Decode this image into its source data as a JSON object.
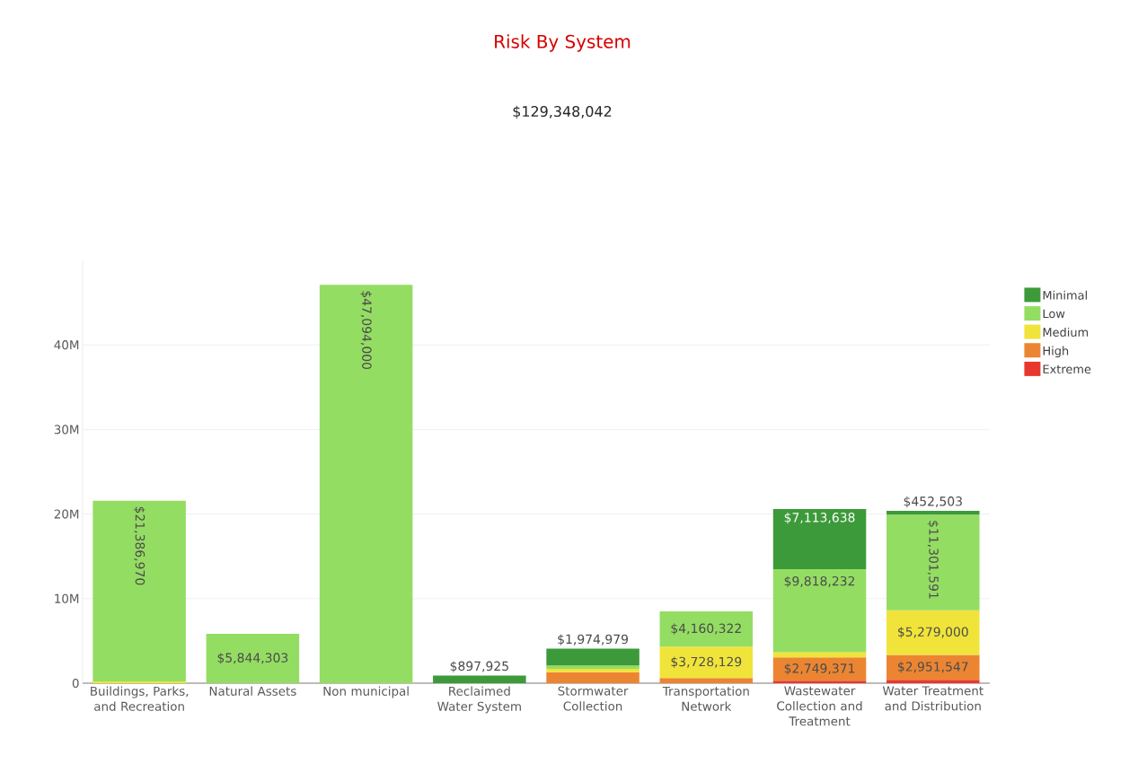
{
  "chart_data": {
    "type": "bar",
    "stacked": true,
    "title": "Risk By System",
    "subtitle": "$129,348,042",
    "categories": [
      "Buildings, Parks, and Recreation",
      "Natural Assets",
      "Non municipal",
      "Reclaimed Water System",
      "Stormwater Collection",
      "Transportation Network",
      "Wastewater Collection and Treatment",
      "Water Treatment and Distribution"
    ],
    "series": [
      {
        "name": "Extreme",
        "color": "#e8372c",
        "values": [
          null,
          null,
          null,
          null,
          null,
          null,
          300000,
          400000
        ],
        "value_labels": [
          null,
          null,
          null,
          null,
          null,
          null,
          null,
          null
        ]
      },
      {
        "name": "High",
        "color": "#ec8532",
        "values": [
          null,
          null,
          null,
          null,
          1300000,
          600000,
          2749371,
          2951547
        ],
        "value_labels": [
          null,
          null,
          null,
          null,
          null,
          null,
          "$2,749,371",
          "$2,951,547"
        ]
      },
      {
        "name": "Medium",
        "color": "#f0e43a",
        "values": [
          200000,
          null,
          null,
          null,
          400000,
          3728129,
          600000,
          5279000
        ],
        "value_labels": [
          null,
          null,
          null,
          null,
          null,
          "$3,728,129",
          null,
          "$5,279,000"
        ]
      },
      {
        "name": "Low",
        "color": "#94dd63",
        "values": [
          21386970,
          5844303,
          47094000,
          null,
          400000,
          4160322,
          9818232,
          11301591
        ],
        "value_labels": [
          "$21,386,970",
          "$5,844,303",
          "$47,094,000",
          null,
          null,
          "$4,160,322",
          "$9,818,232",
          "$11,301,591"
        ]
      },
      {
        "name": "Minimal",
        "color": "#3d9a3a",
        "values": [
          null,
          null,
          null,
          897925,
          1974979,
          null,
          7113638,
          452503
        ],
        "value_labels": [
          null,
          null,
          null,
          "$897,925",
          "$1,974,979",
          null,
          "$7,113,638",
          "$452,503"
        ]
      }
    ],
    "yticks": [
      0,
      {
        "value": 10000000,
        "label": "10M"
      },
      {
        "value": 20000000,
        "label": "20M"
      },
      {
        "value": 30000000,
        "label": "30M"
      },
      {
        "value": 40000000,
        "label": "40M"
      }
    ],
    "ylim": [
      0,
      50000000
    ],
    "grid": "y",
    "legend": "right"
  }
}
